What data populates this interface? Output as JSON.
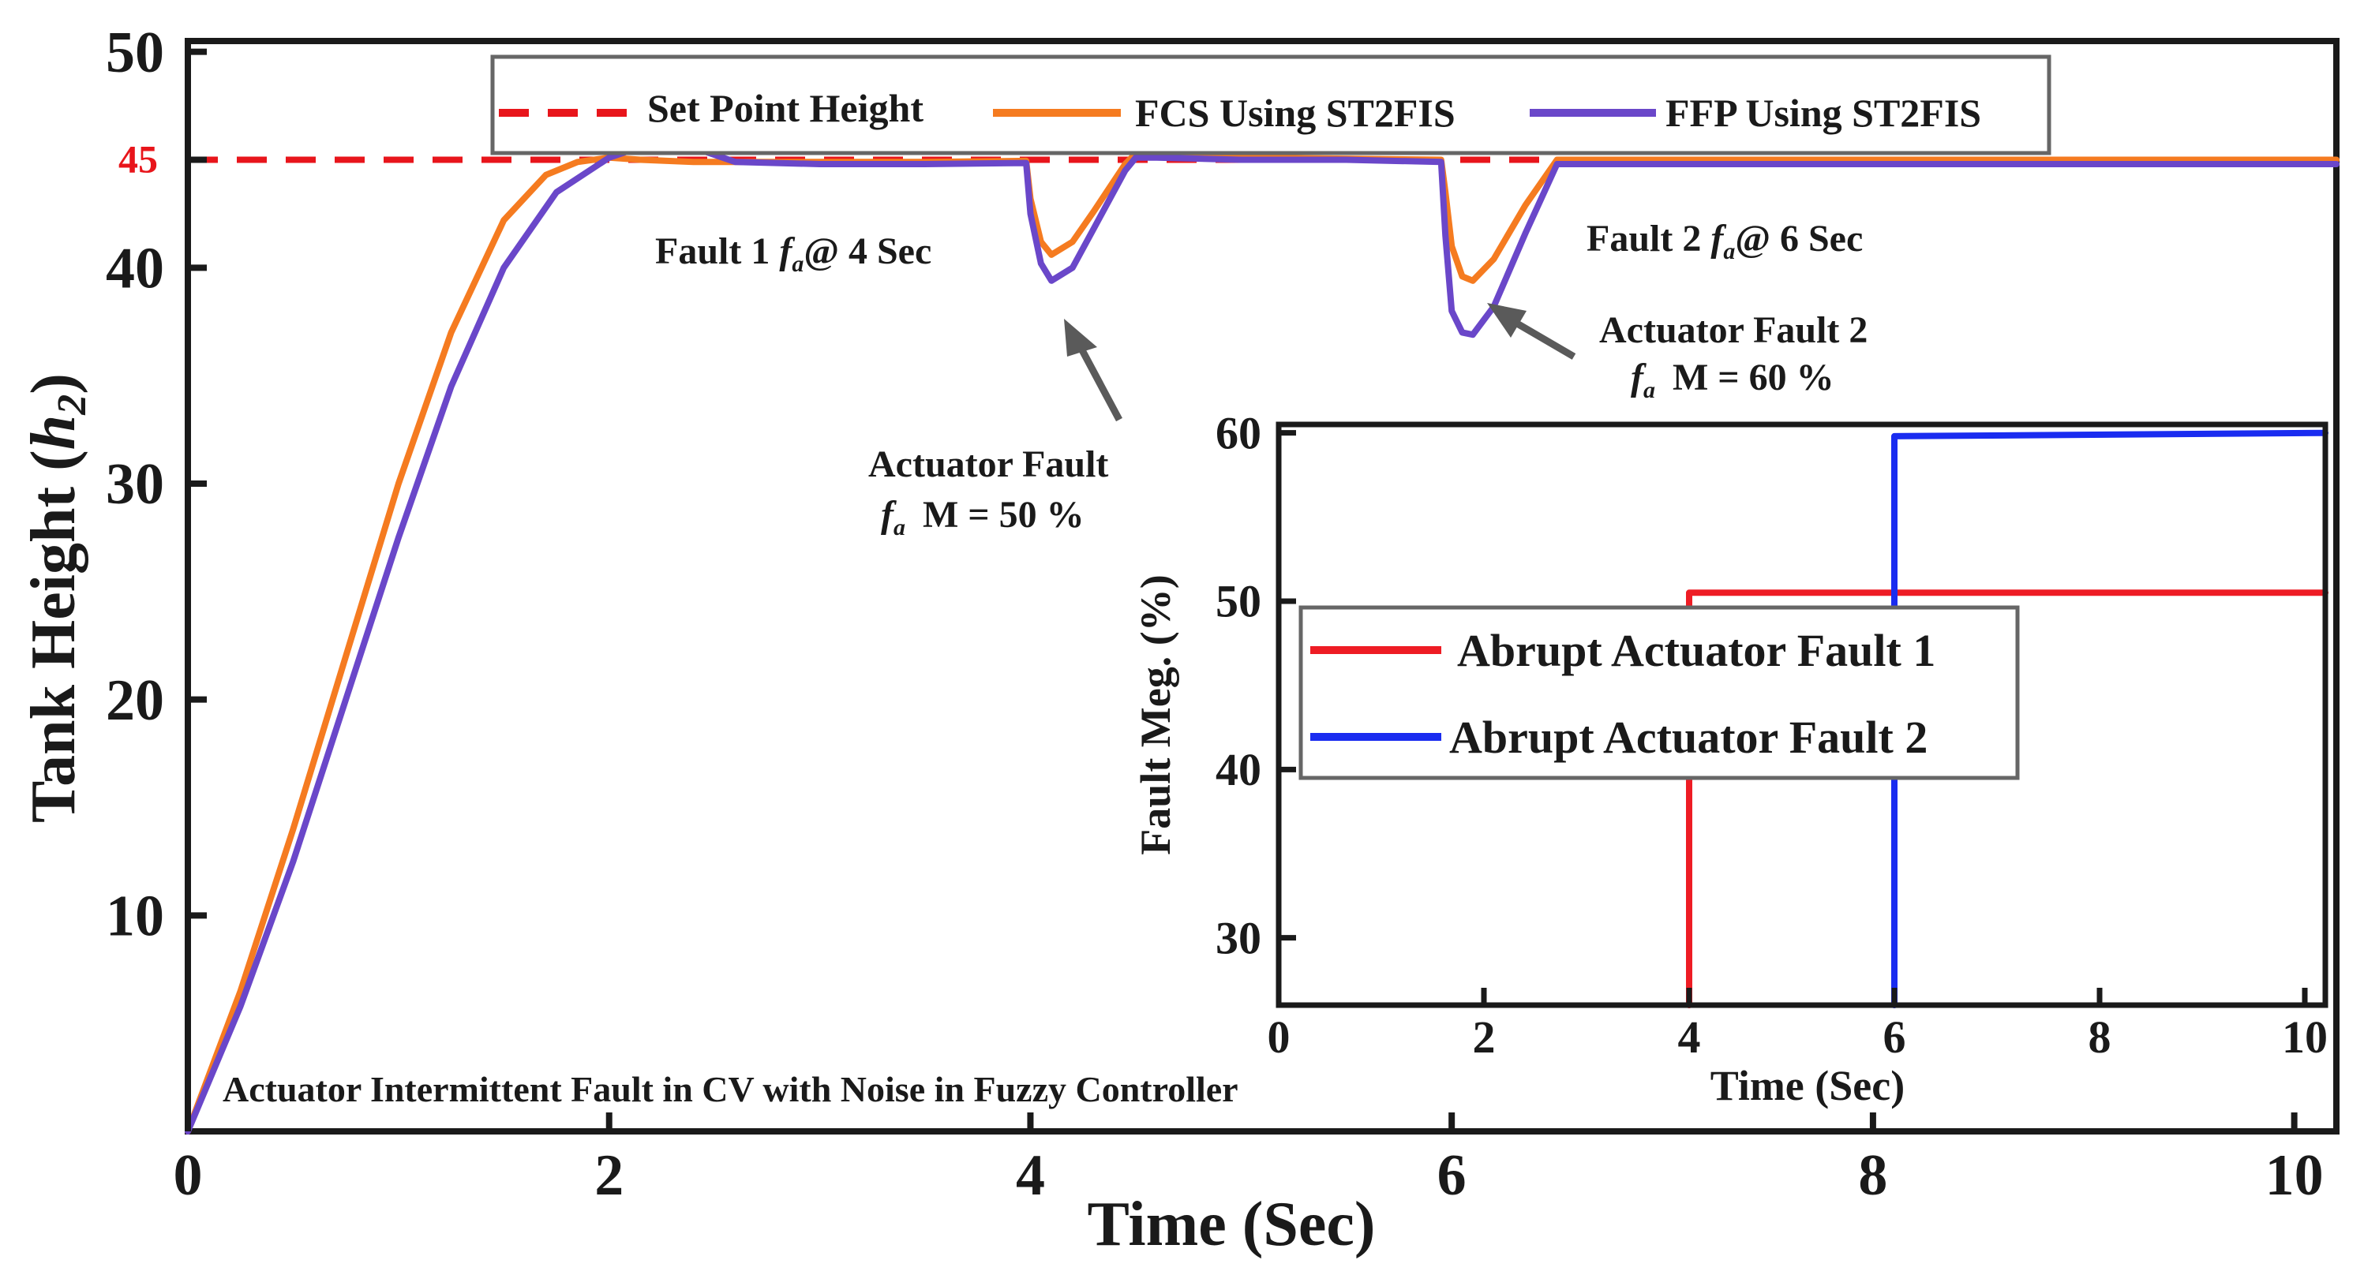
{
  "chart_data": [
    {
      "type": "line",
      "title": "",
      "xlabel": "Time (Sec)",
      "ylabel_main": "Tank Height (",
      "ylabel_var": "h",
      "ylabel_sub": "2",
      "ylabel_close": ")",
      "xlim": [
        0,
        10.2
      ],
      "ylim": [
        0,
        50.5
      ],
      "xticks": [
        0,
        2,
        4,
        6,
        8,
        10
      ],
      "yticks": [
        10,
        20,
        30,
        40,
        50
      ],
      "xtick_labels": [
        "0",
        "2",
        "4",
        "6",
        "8",
        "10"
      ],
      "ytick_labels": [
        "10",
        "20",
        "30",
        "40",
        "50"
      ],
      "highlight_tick": {
        "value": 45,
        "label": "45",
        "color": "#e8151b"
      },
      "grid": false,
      "legend_position": "top",
      "series": [
        {
          "name": "Set Point Height",
          "color": "#e8151b",
          "style": "dashed",
          "x": [
            0,
            10.2
          ],
          "y": [
            45,
            45
          ]
        },
        {
          "name": "FCS Using ST2FIS",
          "color": "#f57b20",
          "style": "solid",
          "x": [
            0,
            0.25,
            0.5,
            0.75,
            1.0,
            1.25,
            1.5,
            1.7,
            1.85,
            2.0,
            2.15,
            2.4,
            3.0,
            3.5,
            3.98,
            4.0,
            4.05,
            4.1,
            4.2,
            4.3,
            4.45,
            4.5,
            4.6,
            5.0,
            5.5,
            5.95,
            5.97,
            6.0,
            6.05,
            6.1,
            6.2,
            6.35,
            6.5,
            7.0,
            8.0,
            9.0,
            10.2
          ],
          "y": [
            0,
            6.5,
            14,
            22,
            30,
            37,
            42.2,
            44.3,
            44.9,
            45.1,
            45.0,
            44.9,
            44.9,
            44.9,
            44.95,
            43.2,
            41.2,
            40.6,
            41.2,
            42.6,
            44.8,
            45.3,
            45.2,
            45.1,
            45.05,
            45.0,
            43.5,
            41.0,
            39.6,
            39.4,
            40.4,
            42.9,
            45.0,
            45.0,
            45.0,
            45.0,
            45.0
          ]
        },
        {
          "name": "FFP Using ST2FIS",
          "color": "#6a47c9",
          "style": "solid",
          "x": [
            0,
            0.25,
            0.5,
            0.75,
            1.0,
            1.25,
            1.5,
            1.75,
            2.0,
            2.15,
            2.3,
            2.45,
            2.6,
            3.0,
            3.5,
            3.98,
            4.0,
            4.05,
            4.1,
            4.2,
            4.3,
            4.45,
            4.5,
            4.6,
            5.0,
            5.5,
            5.95,
            5.97,
            6.0,
            6.05,
            6.1,
            6.2,
            6.35,
            6.5,
            7.0,
            8.0,
            9.0,
            10.2
          ],
          "y": [
            0,
            5.8,
            12.5,
            20,
            27.5,
            34.5,
            40,
            43.5,
            45.1,
            45.6,
            45.8,
            45.4,
            44.9,
            44.8,
            44.8,
            44.85,
            42.5,
            40.2,
            39.4,
            40.0,
            41.8,
            44.5,
            45.1,
            45.1,
            45.0,
            45.0,
            44.9,
            41.5,
            38.0,
            37.0,
            36.9,
            38.2,
            41.6,
            44.8,
            44.8,
            44.8,
            44.8,
            44.8
          ]
        }
      ],
      "annotations": {
        "bottom_note": "Actuator Intermittent Fault in CV with Noise in Fuzzy Controller",
        "fault1_pre": "Fault 1 ",
        "fault1_var": "f",
        "fault1_sub": "a",
        "fault1_post": "@ 4 Sec",
        "fault2_pre": "Fault 2 ",
        "fault2_var": "f",
        "fault2_sub": "a",
        "fault2_post": "@ 6 Sec",
        "arrow1_line1": "Actuator Fault",
        "arrow1_var": "f",
        "arrow1_sub": "a",
        "arrow1_post": "M = 50 %",
        "arrow2_line1": "Actuator Fault 2",
        "arrow2_var": "f",
        "arrow2_sub": "a",
        "arrow2_post": "M = 60 %"
      }
    },
    {
      "type": "line",
      "title": "",
      "xlabel": "Time (Sec)",
      "ylabel": "Fault Meg. (%)",
      "xlim": [
        0,
        10.2
      ],
      "ylim": [
        26,
        60.5
      ],
      "xticks": [
        0,
        2,
        4,
        6,
        8,
        10
      ],
      "yticks": [
        30,
        40,
        50,
        60
      ],
      "xtick_labels": [
        "0",
        "2",
        "4",
        "6",
        "8",
        "10"
      ],
      "ytick_labels": [
        "30",
        "40",
        "50",
        "60"
      ],
      "grid": false,
      "legend_position": "center-left",
      "series": [
        {
          "name": "Abrupt Actuator Fault 1",
          "color": "#ee1c24",
          "style": "solid",
          "x": [
            4,
            4,
            10.2
          ],
          "y": [
            26,
            50.5,
            50.5
          ]
        },
        {
          "name": "Abrupt Actuator Fault 2",
          "color": "#1a2cf0",
          "style": "solid",
          "x": [
            6,
            6,
            10.2
          ],
          "y": [
            26,
            59.8,
            60
          ]
        }
      ]
    }
  ],
  "colors": {
    "axis": "#1a1a1a",
    "legend_border": "#666666",
    "arrow": "#5a5a5a"
  }
}
